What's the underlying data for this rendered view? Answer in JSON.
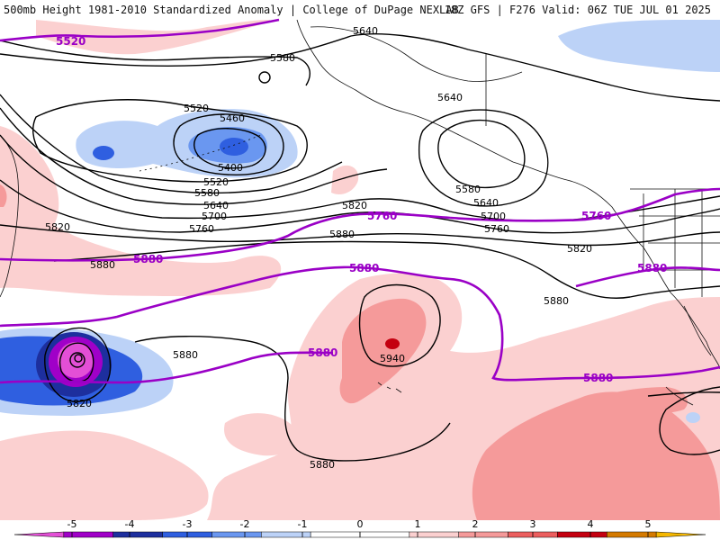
{
  "header": {
    "left": "500mb Height 1981-2010 Standardized Anomaly | College of DuPage NEXLAB",
    "right": "18Z GFS | F276 Valid: 06Z TUE JUL 01 2025"
  },
  "height_labels": [
    "5640",
    "5580",
    "5520",
    "5460",
    "5400",
    "5520",
    "5580",
    "5640",
    "5700",
    "5760",
    "5820",
    "5880",
    "5640",
    "5580",
    "5640",
    "5700",
    "5760",
    "5820",
    "5880",
    "5820",
    "5880",
    "5880",
    "5940",
    "5820",
    "5880"
  ],
  "purple_labels": [
    "5520",
    "5760",
    "5760",
    "5880",
    "5880",
    "5880",
    "5880",
    "5880"
  ],
  "colorbar": {
    "ticks": [
      "-5",
      "-4",
      "-3",
      "-2",
      "-1",
      "0",
      "1",
      "2",
      "3",
      "4",
      "5"
    ],
    "colors": [
      "#e34fd6",
      "#a000c8",
      "#1d2f9e",
      "#2f5fe0",
      "#6a97f0",
      "#bcd2f7",
      "#ffffff",
      "#ffffff",
      "#fbd0d0",
      "#f59a9a",
      "#ec5f5f",
      "#c40010",
      "#d47a00",
      "#f5b700"
    ]
  },
  "colors": {
    "contour": "#000000",
    "purple_contour": "#9a00c6",
    "land_outline": "#111111"
  }
}
